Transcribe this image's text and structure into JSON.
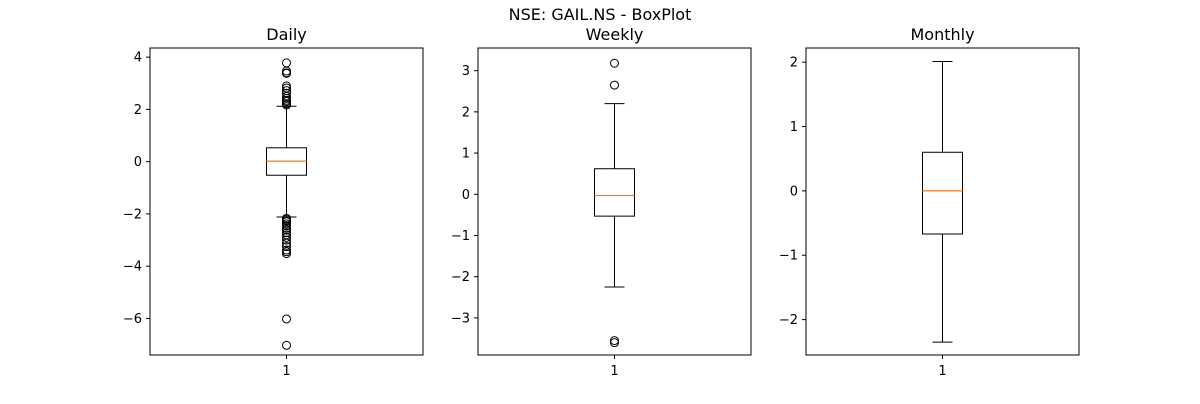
{
  "figure": {
    "suptitle": "NSE: GAIL.NS - BoxPlot"
  },
  "colors": {
    "box": "#000000",
    "median": "#ff7f0e",
    "background": "#ffffff"
  },
  "chart_data": [
    {
      "type": "boxplot",
      "title": "Daily",
      "categories": [
        "1"
      ],
      "ylim": [
        -7.4,
        4.35
      ],
      "yticks": [
        -6,
        -4,
        -2,
        0,
        2,
        4
      ],
      "box": {
        "q1": -0.52,
        "median": 0.02,
        "q3": 0.53,
        "whisker_low": -2.12,
        "whisker_high": 2.12
      },
      "outliers": [
        3.78,
        3.47,
        3.4,
        3.38,
        2.9,
        2.82,
        2.72,
        2.62,
        2.5,
        2.42,
        2.35,
        2.3,
        2.22,
        2.17,
        -2.17,
        -2.2,
        -2.25,
        -2.3,
        -2.38,
        -2.45,
        -2.55,
        -2.62,
        -2.72,
        -2.8,
        -2.9,
        -3.0,
        -3.12,
        -3.25,
        -3.38,
        -3.45,
        -3.52,
        -6.02,
        -7.03
      ]
    },
    {
      "type": "boxplot",
      "title": "Weekly",
      "categories": [
        "1"
      ],
      "ylim": [
        -3.9,
        3.55
      ],
      "yticks": [
        -3,
        -2,
        -1,
        0,
        1,
        2,
        3
      ],
      "box": {
        "q1": -0.53,
        "median": -0.03,
        "q3": 0.62,
        "whisker_low": -2.25,
        "whisker_high": 2.2
      },
      "outliers": [
        3.18,
        2.65,
        -3.55,
        -3.6
      ]
    },
    {
      "type": "boxplot",
      "title": "Monthly",
      "categories": [
        "1"
      ],
      "ylim": [
        -2.55,
        2.22
      ],
      "yticks": [
        -2,
        -1,
        0,
        1,
        2
      ],
      "box": {
        "q1": -0.67,
        "median": 0.0,
        "q3": 0.6,
        "whisker_low": -2.35,
        "whisker_high": 2.01
      },
      "outliers": []
    }
  ]
}
